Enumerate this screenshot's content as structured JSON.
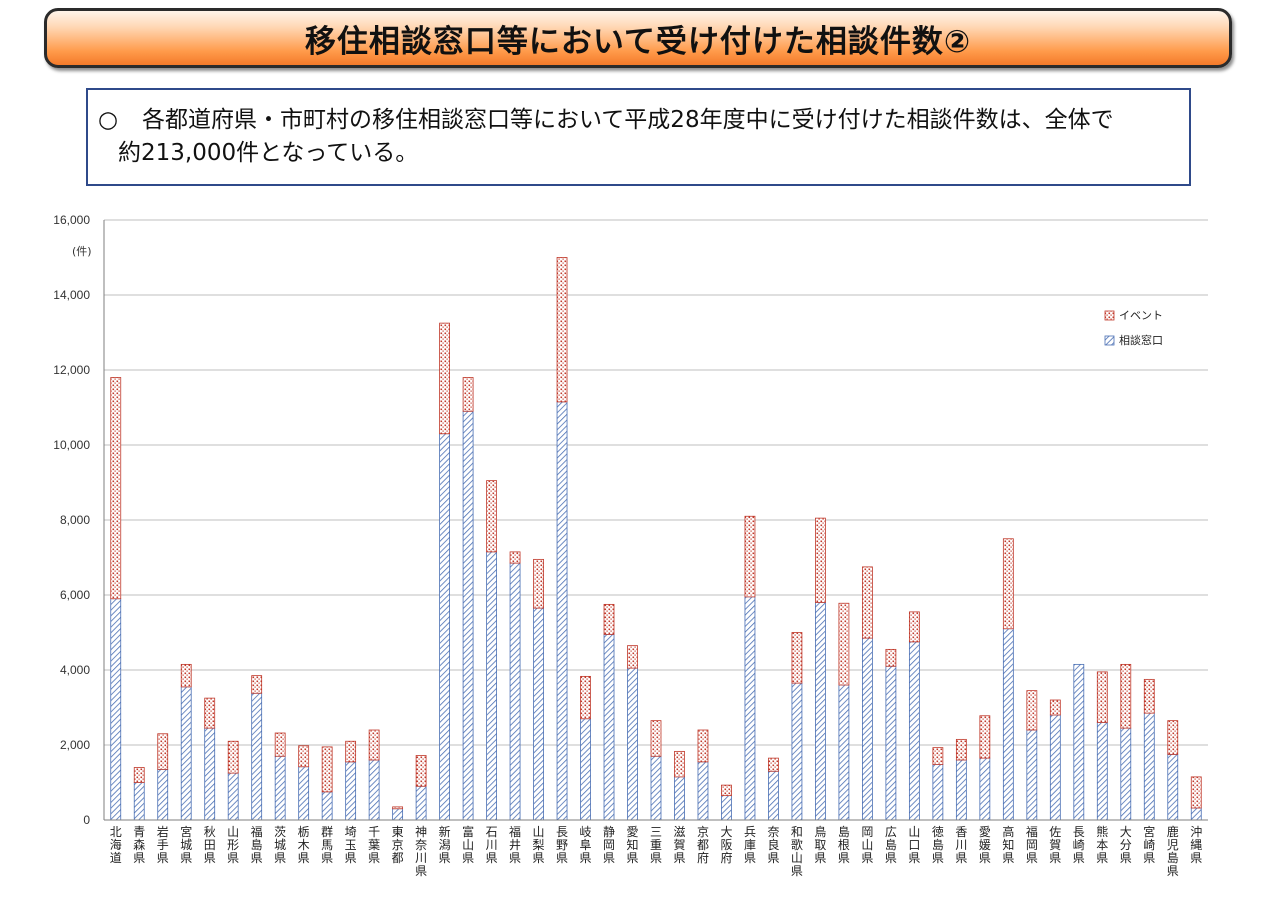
{
  "header": {
    "title": "移住相談窓口等において受け付けた相談件数②"
  },
  "summary": {
    "bullet": "○",
    "line1": "各都道府県・市町村の移住相談窓口等において平成28年度中に受け付けた相談件数は、全体で",
    "line2": "約213,000件となっている。"
  },
  "colors": {
    "consult": "#4a6fb4",
    "event": "#c0392b"
  },
  "chart_data": {
    "type": "bar",
    "stacked": true,
    "unit_label": "(件)",
    "ylim": [
      0,
      16000
    ],
    "yticks": [
      0,
      2000,
      4000,
      6000,
      8000,
      10000,
      12000,
      14000,
      16000
    ],
    "ytick_labels": [
      "0",
      "2,000",
      "4,000",
      "6,000",
      "8,000",
      "10,000",
      "12,000",
      "14,000",
      "16,000"
    ],
    "grid": true,
    "legend_position": "top-right",
    "categories": [
      "北海道",
      "青森県",
      "岩手県",
      "宮城県",
      "秋田県",
      "山形県",
      "福島県",
      "茨城県",
      "栃木県",
      "群馬県",
      "埼玉県",
      "千葉県",
      "東京都",
      "神奈川県",
      "新潟県",
      "富山県",
      "石川県",
      "福井県",
      "山梨県",
      "長野県",
      "岐阜県",
      "静岡県",
      "愛知県",
      "三重県",
      "滋賀県",
      "京都府",
      "大阪府",
      "兵庫県",
      "奈良県",
      "和歌山県",
      "鳥取県",
      "島根県",
      "岡山県",
      "広島県",
      "山口県",
      "徳島県",
      "香川県",
      "愛媛県",
      "高知県",
      "福岡県",
      "佐賀県",
      "長崎県",
      "熊本県",
      "大分県",
      "宮崎県",
      "鹿児島県",
      "沖縄県"
    ],
    "series": [
      {
        "name": "相談窓口",
        "values": [
          5900,
          1000,
          1350,
          3550,
          2450,
          1250,
          3380,
          1700,
          1420,
          750,
          1550,
          1600,
          300,
          900,
          10300,
          10900,
          7150,
          6850,
          5650,
          11150,
          2700,
          4950,
          4050,
          1700,
          1150,
          1550,
          650,
          5950,
          1300,
          3650,
          5800,
          3600,
          4850,
          4100,
          4750,
          1480,
          1600,
          1650,
          5100,
          2400,
          2800,
          4150,
          2600,
          2450,
          2850,
          1750,
          320
        ]
      },
      {
        "name": "イベント",
        "values": [
          5900,
          400,
          950,
          600,
          800,
          850,
          470,
          620,
          560,
          1200,
          550,
          800,
          50,
          820,
          2950,
          900,
          1900,
          300,
          1300,
          3850,
          1130,
          800,
          600,
          950,
          680,
          850,
          280,
          2150,
          350,
          1350,
          2250,
          2180,
          1900,
          450,
          800,
          450,
          550,
          1130,
          2400,
          1050,
          400,
          0,
          1350,
          1700,
          900,
          900,
          830
        ]
      }
    ]
  }
}
